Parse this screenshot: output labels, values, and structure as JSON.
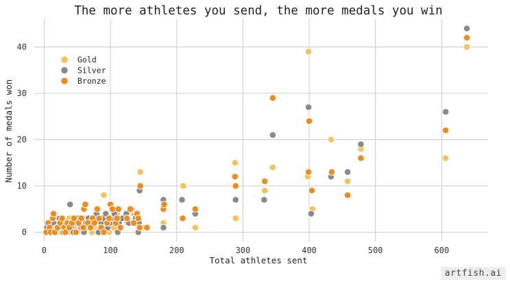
{
  "chart_data": {
    "type": "scatter",
    "title": "The more athletes you send, the more medals you win",
    "xlabel": "Total athletes sent",
    "ylabel": "Number of medals won",
    "xlim": [
      -15,
      670
    ],
    "ylim": [
      -2,
      46
    ],
    "xticks": [
      0,
      100,
      200,
      300,
      400,
      500,
      600
    ],
    "yticks": [
      0,
      10,
      20,
      30,
      40
    ],
    "grid": true,
    "legend": "top-left",
    "series": [
      {
        "name": "Gold",
        "color": "#f7c25a",
        "points": [
          [
            3,
            0
          ],
          [
            5,
            0
          ],
          [
            7,
            1
          ],
          [
            8,
            0
          ],
          [
            10,
            2
          ],
          [
            12,
            0
          ],
          [
            15,
            1
          ],
          [
            18,
            0
          ],
          [
            20,
            2
          ],
          [
            22,
            1
          ],
          [
            25,
            0
          ],
          [
            28,
            1
          ],
          [
            30,
            2
          ],
          [
            32,
            0
          ],
          [
            35,
            1
          ],
          [
            38,
            3
          ],
          [
            40,
            0
          ],
          [
            42,
            2
          ],
          [
            45,
            1
          ],
          [
            48,
            0
          ],
          [
            50,
            2
          ],
          [
            55,
            1
          ],
          [
            58,
            0
          ],
          [
            60,
            3
          ],
          [
            65,
            1
          ],
          [
            70,
            2
          ],
          [
            72,
            0
          ],
          [
            75,
            1
          ],
          [
            78,
            3
          ],
          [
            80,
            2
          ],
          [
            85,
            0
          ],
          [
            88,
            1
          ],
          [
            90,
            8
          ],
          [
            92,
            3
          ],
          [
            95,
            1
          ],
          [
            98,
            0
          ],
          [
            100,
            2
          ],
          [
            102,
            5
          ],
          [
            105,
            1
          ],
          [
            108,
            3
          ],
          [
            110,
            4
          ],
          [
            112,
            2
          ],
          [
            115,
            1
          ],
          [
            120,
            3
          ],
          [
            125,
            2
          ],
          [
            130,
            5
          ],
          [
            135,
            4
          ],
          [
            140,
            2
          ],
          [
            145,
            13
          ],
          [
            150,
            1
          ],
          [
            155,
            1
          ],
          [
            180,
            2
          ],
          [
            210,
            10
          ],
          [
            228,
            1
          ],
          [
            288,
            15
          ],
          [
            289,
            3
          ],
          [
            333,
            9
          ],
          [
            345,
            14
          ],
          [
            398,
            12
          ],
          [
            399,
            39
          ],
          [
            405,
            5
          ],
          [
            433,
            20
          ],
          [
            458,
            11
          ],
          [
            478,
            18
          ],
          [
            606,
            16
          ],
          [
            638,
            40
          ]
        ]
      },
      {
        "name": "Silver",
        "color": "#8a8a8a",
        "points": [
          [
            4,
            1
          ],
          [
            6,
            0
          ],
          [
            9,
            0
          ],
          [
            11,
            1
          ],
          [
            14,
            2
          ],
          [
            17,
            0
          ],
          [
            19,
            1
          ],
          [
            23,
            3
          ],
          [
            26,
            2
          ],
          [
            29,
            0
          ],
          [
            33,
            1
          ],
          [
            36,
            2
          ],
          [
            39,
            6
          ],
          [
            41,
            1
          ],
          [
            44,
            0
          ],
          [
            47,
            2
          ],
          [
            52,
            3
          ],
          [
            56,
            1
          ],
          [
            60,
            0
          ],
          [
            63,
            2
          ],
          [
            67,
            3
          ],
          [
            71,
            1
          ],
          [
            74,
            2
          ],
          [
            79,
            4
          ],
          [
            82,
            0
          ],
          [
            86,
            2
          ],
          [
            89,
            3
          ],
          [
            93,
            4
          ],
          [
            96,
            1
          ],
          [
            99,
            2
          ],
          [
            103,
            3
          ],
          [
            106,
            4
          ],
          [
            111,
            0
          ],
          [
            113,
            2
          ],
          [
            118,
            3
          ],
          [
            124,
            4
          ],
          [
            128,
            2
          ],
          [
            132,
            5
          ],
          [
            138,
            3
          ],
          [
            142,
            0
          ],
          [
            143,
            2
          ],
          [
            144,
            9
          ],
          [
            180,
            1
          ],
          [
            180,
            7
          ],
          [
            208,
            7
          ],
          [
            228,
            4
          ],
          [
            289,
            7
          ],
          [
            332,
            7
          ],
          [
            345,
            21
          ],
          [
            399,
            27
          ],
          [
            403,
            4
          ],
          [
            433,
            12
          ],
          [
            458,
            13
          ],
          [
            478,
            19
          ],
          [
            606,
            26
          ],
          [
            638,
            44
          ]
        ]
      },
      {
        "name": "Bronze",
        "color": "#ee8c1e",
        "points": [
          [
            3,
            0
          ],
          [
            6,
            2
          ],
          [
            8,
            1
          ],
          [
            10,
            0
          ],
          [
            13,
            3
          ],
          [
            14,
            4
          ],
          [
            16,
            0
          ],
          [
            20,
            1
          ],
          [
            24,
            2
          ],
          [
            27,
            3
          ],
          [
            30,
            1
          ],
          [
            32,
            0
          ],
          [
            35,
            2
          ],
          [
            38,
            1
          ],
          [
            42,
            2
          ],
          [
            45,
            3
          ],
          [
            48,
            0
          ],
          [
            52,
            2
          ],
          [
            56,
            3
          ],
          [
            59,
            1
          ],
          [
            60,
            5
          ],
          [
            62,
            6
          ],
          [
            66,
            2
          ],
          [
            70,
            1
          ],
          [
            73,
            3
          ],
          [
            76,
            2
          ],
          [
            80,
            5
          ],
          [
            83,
            3
          ],
          [
            86,
            1
          ],
          [
            90,
            0
          ],
          [
            95,
            2
          ],
          [
            98,
            3
          ],
          [
            100,
            6
          ],
          [
            103,
            5
          ],
          [
            108,
            2
          ],
          [
            110,
            3
          ],
          [
            112,
            5
          ],
          [
            115,
            1
          ],
          [
            125,
            3
          ],
          [
            130,
            5
          ],
          [
            135,
            2
          ],
          [
            140,
            4
          ],
          [
            142,
            3
          ],
          [
            144,
            1
          ],
          [
            145,
            10
          ],
          [
            155,
            1
          ],
          [
            180,
            5
          ],
          [
            181,
            6
          ],
          [
            209,
            3
          ],
          [
            228,
            5
          ],
          [
            288,
            12
          ],
          [
            289,
            10
          ],
          [
            333,
            11
          ],
          [
            345,
            29
          ],
          [
            399,
            13
          ],
          [
            400,
            24
          ],
          [
            404,
            9
          ],
          [
            434,
            13
          ],
          [
            458,
            8
          ],
          [
            478,
            16
          ],
          [
            606,
            22
          ],
          [
            638,
            42
          ]
        ]
      }
    ]
  },
  "watermark": "artfish.ai"
}
